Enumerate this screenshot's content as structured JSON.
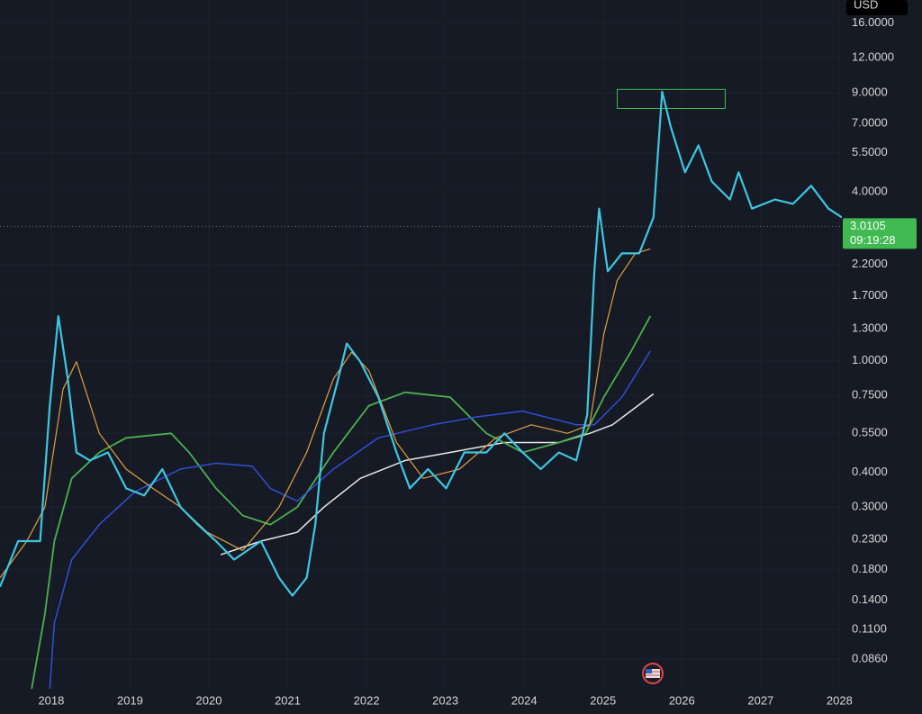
{
  "chart_data": {
    "type": "line",
    "currency": "USD",
    "log_scale": true,
    "grid": true,
    "xlim": [
      2017.35,
      2028.03
    ],
    "ylim": [
      0.0675,
      19.3
    ],
    "xticks": [
      2018,
      2019,
      2020,
      2021,
      2022,
      2023,
      2024,
      2025,
      2026,
      2027,
      2028
    ],
    "yticks": [
      {
        "value": 0.086,
        "label": "0.0860"
      },
      {
        "value": 0.11,
        "label": "0.1100"
      },
      {
        "value": 0.14,
        "label": "0.1400"
      },
      {
        "value": 0.18,
        "label": "0.1800"
      },
      {
        "value": 0.23,
        "label": "0.2300"
      },
      {
        "value": 0.3,
        "label": "0.3000"
      },
      {
        "value": 0.4,
        "label": "0.4000"
      },
      {
        "value": 0.55,
        "label": "0.5500"
      },
      {
        "value": 0.75,
        "label": "0.7500"
      },
      {
        "value": 1,
        "label": "1.0000"
      },
      {
        "value": 1.3,
        "label": "1.3000"
      },
      {
        "value": 1.7,
        "label": "1.7000"
      },
      {
        "value": 2.2,
        "label": "2.2000"
      },
      {
        "value": 4,
        "label": "4.0000"
      },
      {
        "value": 5.5,
        "label": "5.5000"
      },
      {
        "value": 7,
        "label": "7.0000"
      },
      {
        "value": 9,
        "label": "9.0000"
      },
      {
        "value": 12,
        "label": "12.0000"
      },
      {
        "value": 16,
        "label": "16.0000"
      }
    ],
    "last_price": 3.0105,
    "countdown": "09:19:28",
    "price_color": "#3fb950",
    "highlight_box": {
      "x": [
        2025.18,
        2026.55
      ],
      "y": [
        7.92,
        9.26
      ],
      "color": "#3fb950"
    },
    "series": [
      {
        "color": "#e8e8e8",
        "width": 1.5,
        "x": [
          2020.15,
          2020.66,
          2021.12,
          2021.46,
          2021.92,
          2022.49,
          2023.06,
          2023.75,
          2024.44,
          2024.83,
          2025.12,
          2025.35,
          2025.64
        ],
        "values": [
          0.203,
          0.227,
          0.244,
          0.3,
          0.38,
          0.44,
          0.47,
          0.51,
          0.51,
          0.55,
          0.59,
          0.66,
          0.76
        ]
      },
      {
        "color": "#4caf50",
        "width": 1.8,
        "x": [
          2017.75,
          2017.92,
          2018.04,
          2018.26,
          2018.61,
          2018.95,
          2019.52,
          2019.75,
          2020.09,
          2020.43,
          2020.78,
          2021.12,
          2021.58,
          2022.03,
          2022.49,
          2023.06,
          2023.52,
          2023.98,
          2024.44,
          2024.78,
          2025.01,
          2025.35,
          2025.6
        ],
        "values": [
          0.067,
          0.125,
          0.227,
          0.38,
          0.47,
          0.53,
          0.55,
          0.47,
          0.35,
          0.28,
          0.26,
          0.3,
          0.47,
          0.69,
          0.77,
          0.74,
          0.55,
          0.47,
          0.51,
          0.55,
          0.74,
          1.07,
          1.44
        ]
      },
      {
        "color": "#2f4fd6",
        "width": 1.5,
        "x": [
          2017.98,
          2018.04,
          2018.26,
          2018.61,
          2019.06,
          2019.64,
          2020.09,
          2020.55,
          2020.78,
          2021.12,
          2021.58,
          2022.15,
          2022.84,
          2023.41,
          2023.98,
          2024.66,
          2024.89,
          2025.24,
          2025.6
        ],
        "values": [
          0.067,
          0.116,
          0.195,
          0.26,
          0.34,
          0.41,
          0.43,
          0.42,
          0.35,
          0.315,
          0.41,
          0.53,
          0.59,
          0.63,
          0.66,
          0.59,
          0.59,
          0.74,
          1.08
        ]
      },
      {
        "color": "#e0a040",
        "width": 1.2,
        "x": [
          2017.35,
          2017.69,
          2017.92,
          2018.15,
          2018.32,
          2018.61,
          2018.95,
          2019.29,
          2019.64,
          2019.98,
          2020.43,
          2020.89,
          2021.24,
          2021.58,
          2021.81,
          2022.03,
          2022.38,
          2022.72,
          2023.18,
          2023.64,
          2024.09,
          2024.55,
          2024.83,
          2025.01,
          2025.18,
          2025.41,
          2025.6
        ],
        "values": [
          0.168,
          0.227,
          0.3,
          0.79,
          0.99,
          0.55,
          0.41,
          0.35,
          0.3,
          0.244,
          0.21,
          0.3,
          0.47,
          0.86,
          1.07,
          0.92,
          0.51,
          0.38,
          0.41,
          0.53,
          0.59,
          0.55,
          0.59,
          1.24,
          1.93,
          2.41,
          2.5
        ]
      },
      {
        "color": "#3ec6e0",
        "width": 2.2,
        "x": [
          2017.35,
          2017.58,
          2017.86,
          2017.98,
          2018.09,
          2018.21,
          2018.32,
          2018.49,
          2018.72,
          2018.95,
          2019.18,
          2019.41,
          2019.64,
          2019.86,
          2020.09,
          2020.32,
          2020.66,
          2020.89,
          2021.06,
          2021.24,
          2021.35,
          2021.46,
          2021.64,
          2021.75,
          2021.92,
          2022.15,
          2022.38,
          2022.55,
          2022.78,
          2023.01,
          2023.24,
          2023.52,
          2023.75,
          2023.98,
          2024.21,
          2024.44,
          2024.66,
          2024.8,
          2024.89,
          2024.95,
          2025.06,
          2025.24,
          2025.46,
          2025.64,
          2025.75,
          2025.86,
          2026.04,
          2026.21,
          2026.38,
          2026.61,
          2026.72,
          2026.89,
          2027.18,
          2027.41,
          2027.64,
          2027.86,
          2028.03
        ],
        "values": [
          0.156,
          0.227,
          0.227,
          0.686,
          1.44,
          0.86,
          0.47,
          0.44,
          0.47,
          0.35,
          0.33,
          0.41,
          0.3,
          0.26,
          0.227,
          0.195,
          0.227,
          0.168,
          0.145,
          0.168,
          0.26,
          0.55,
          0.86,
          1.15,
          0.99,
          0.74,
          0.47,
          0.35,
          0.41,
          0.35,
          0.47,
          0.47,
          0.55,
          0.47,
          0.41,
          0.47,
          0.44,
          0.64,
          2.08,
          3.48,
          2.08,
          2.41,
          2.41,
          3.24,
          9.1,
          6.8,
          4.69,
          5.85,
          4.35,
          3.75,
          4.69,
          3.48,
          3.75,
          3.62,
          4.2,
          3.48,
          3.24
        ]
      }
    ]
  }
}
